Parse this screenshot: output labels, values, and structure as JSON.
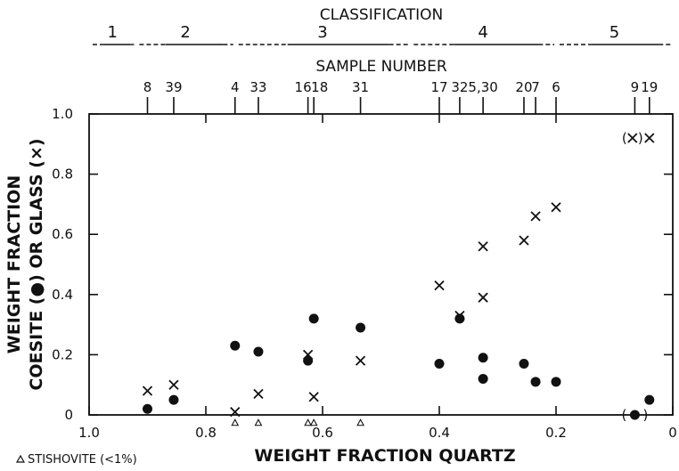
{
  "chart_data": {
    "type": "scatter",
    "title": "",
    "xlabel": "WEIGHT FRACTION QUARTZ",
    "ylabel_line1": "WEIGHT FRACTION",
    "ylabel_line2": "COESITE (●) OR GLASS (×)",
    "xlim": [
      1.0,
      0.0
    ],
    "ylim": [
      0.0,
      1.0
    ],
    "x_reversed": true,
    "grid": false,
    "x_ticks": [
      1.0,
      0.8,
      0.6,
      0.4,
      0.2,
      0.0
    ],
    "x_tick_labels": [
      "1.0",
      "0.8",
      "0.6",
      "0.4",
      "0.2",
      "0"
    ],
    "y_ticks": [
      0.0,
      0.2,
      0.4,
      0.6,
      0.8,
      1.0
    ],
    "y_tick_labels": [
      "0",
      "0.2",
      "0.4",
      "0.6",
      "0.8",
      "1.0"
    ],
    "classification": {
      "title": "CLASSIFICATION",
      "groups": [
        {
          "label": "1",
          "range": [
            1.0,
            0.92
          ]
        },
        {
          "label": "2",
          "range": [
            0.92,
            0.75
          ]
        },
        {
          "label": "3",
          "range": [
            0.75,
            0.45
          ]
        },
        {
          "label": "4",
          "range": [
            0.45,
            0.2
          ]
        },
        {
          "label": "5",
          "range": [
            0.2,
            0.0
          ]
        }
      ]
    },
    "sample_numbers": {
      "title": "SAMPLE NUMBER",
      "samples": [
        {
          "label": "8",
          "x": 0.9
        },
        {
          "label": "39",
          "x": 0.855
        },
        {
          "label": "4",
          "x": 0.75
        },
        {
          "label": "33",
          "x": 0.71
        },
        {
          "label": "16",
          "x": 0.625
        },
        {
          "label": "18",
          "x": 0.615
        },
        {
          "label": "31",
          "x": 0.535
        },
        {
          "label": "17",
          "x": 0.4
        },
        {
          "label": "32",
          "x": 0.365
        },
        {
          "label": "5,30",
          "x": 0.325
        },
        {
          "label": "20",
          "x": 0.255
        },
        {
          "label": "7",
          "x": 0.235
        },
        {
          "label": "6",
          "x": 0.2
        },
        {
          "label": "9",
          "x": 0.065
        },
        {
          "label": "19",
          "x": 0.04
        }
      ]
    },
    "series": [
      {
        "name": "coesite",
        "marker": "dot",
        "points": [
          {
            "x": 0.9,
            "y": 0.02
          },
          {
            "x": 0.855,
            "y": 0.05
          },
          {
            "x": 0.75,
            "y": 0.23
          },
          {
            "x": 0.71,
            "y": 0.21
          },
          {
            "x": 0.625,
            "y": 0.18
          },
          {
            "x": 0.615,
            "y": 0.32
          },
          {
            "x": 0.535,
            "y": 0.29
          },
          {
            "x": 0.4,
            "y": 0.17
          },
          {
            "x": 0.365,
            "y": 0.32
          },
          {
            "x": 0.325,
            "y": 0.19
          },
          {
            "x": 0.325,
            "y": 0.12
          },
          {
            "x": 0.255,
            "y": 0.17
          },
          {
            "x": 0.235,
            "y": 0.11
          },
          {
            "x": 0.2,
            "y": 0.11
          },
          {
            "x": 0.065,
            "y": 0.0,
            "parenthesized": true
          },
          {
            "x": 0.04,
            "y": 0.05
          }
        ]
      },
      {
        "name": "glass",
        "marker": "cross",
        "points": [
          {
            "x": 0.9,
            "y": 0.08
          },
          {
            "x": 0.855,
            "y": 0.1
          },
          {
            "x": 0.75,
            "y": 0.01
          },
          {
            "x": 0.71,
            "y": 0.07
          },
          {
            "x": 0.625,
            "y": 0.2
          },
          {
            "x": 0.615,
            "y": 0.06
          },
          {
            "x": 0.535,
            "y": 0.18
          },
          {
            "x": 0.4,
            "y": 0.43
          },
          {
            "x": 0.365,
            "y": 0.33
          },
          {
            "x": 0.325,
            "y": 0.56
          },
          {
            "x": 0.325,
            "y": 0.39
          },
          {
            "x": 0.255,
            "y": 0.58
          },
          {
            "x": 0.235,
            "y": 0.66
          },
          {
            "x": 0.2,
            "y": 0.69
          },
          {
            "x": 0.04,
            "y": 0.92,
            "parenthesized": true
          }
        ]
      },
      {
        "name": "STISHOVITE (<1%)",
        "marker": "triangle",
        "points": [
          {
            "x": 0.75,
            "y": -0.02
          },
          {
            "x": 0.71,
            "y": -0.02
          },
          {
            "x": 0.625,
            "y": -0.02
          },
          {
            "x": 0.615,
            "y": -0.02
          },
          {
            "x": 0.535,
            "y": -0.02
          }
        ]
      }
    ],
    "annotations": {
      "cross_open": "(",
      "cross_close": ")",
      "dot_open": "(",
      "dot_close": ")"
    },
    "legend_note": "STISHOVITE (<1%)",
    "legend_placement": "bottom-left"
  }
}
